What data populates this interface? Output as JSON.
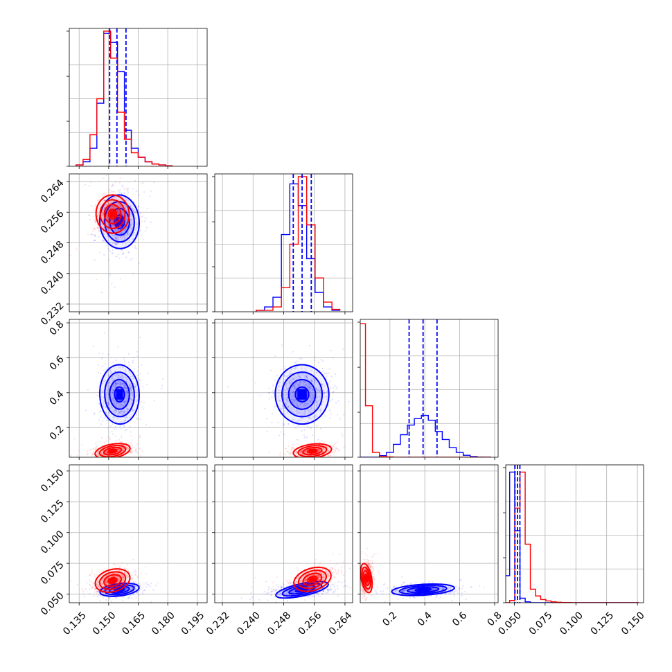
{
  "colors": {
    "blue": "#0000ff",
    "red": "#ff0000",
    "grid": "#b0b0b0",
    "axis": "#000000"
  },
  "chart_data": {
    "type": "corner",
    "grid": true,
    "n_params": 4,
    "series": [
      {
        "name": "",
        "color": "#0000ff"
      },
      {
        "name": "",
        "color": "#ff0000"
      }
    ],
    "params": [
      {
        "range": [
          0.13,
          0.2
        ],
        "ticks": [
          0.135,
          0.15,
          0.165,
          0.18,
          0.195
        ],
        "tick_labels": [
          "0.135",
          "0.150",
          "0.165",
          "0.180",
          "0.195"
        ]
      },
      {
        "range": [
          0.23,
          0.266
        ],
        "ticks": [
          0.232,
          0.24,
          0.248,
          0.256,
          0.264
        ],
        "tick_labels": [
          "0.232",
          "0.240",
          "0.248",
          "0.256",
          "0.264"
        ]
      },
      {
        "range": [
          0.03,
          0.82
        ],
        "ticks": [
          0.2,
          0.4,
          0.6,
          0.8
        ],
        "tick_labels": [
          "0.2",
          "0.4",
          "0.6",
          "0.8"
        ]
      },
      {
        "range": [
          0.043,
          0.155
        ],
        "ticks": [
          0.05,
          0.075,
          0.1,
          0.125,
          0.15
        ],
        "tick_labels": [
          "0.050",
          "0.075",
          "0.100",
          "0.125",
          "0.150"
        ]
      }
    ],
    "histograms": [
      {
        "param": 0,
        "bin_width": 0.0035,
        "bin_start": 0.1335,
        "ymax": 30,
        "blue": [
          0.3,
          1,
          4,
          14,
          29.5,
          27.5,
          21,
          8,
          4,
          2,
          1,
          0.5,
          0.3,
          0.1
        ],
        "red": [
          0.3,
          1.5,
          7,
          15,
          30,
          24,
          12,
          6,
          3,
          2,
          1,
          0.5,
          0.3,
          0.1
        ],
        "quantiles_blue": [
          0.1505,
          0.1542,
          0.1588
        ]
      },
      {
        "param": 1,
        "bin_width": 0.0022,
        "bin_start": 0.2408,
        "ymax": 28,
        "blue": [
          0.3,
          1,
          3,
          16,
          26.5,
          22,
          11,
          4,
          1,
          0.3
        ],
        "red": [
          0.3,
          0.3,
          1,
          5,
          14,
          28,
          18,
          7,
          2,
          0.5
        ],
        "quantiles_blue": [
          0.2505,
          0.2528,
          0.2552
        ]
      },
      {
        "param": 2,
        "bin_width": 0.04,
        "bin_start": 0.02,
        "ymax": 42,
        "blue": [
          0,
          0,
          0,
          0.5,
          1.5,
          4,
          7,
          10,
          12,
          13,
          11.5,
          8,
          5.5,
          3,
          1.5,
          0.6,
          0.2,
          0.05,
          0
        ],
        "red": [
          41.5,
          16,
          1.5,
          0.3,
          0.1,
          0,
          0,
          0,
          0,
          0,
          0,
          0,
          0,
          0,
          0,
          0,
          0,
          0,
          0
        ],
        "quantiles_blue": [
          0.31,
          0.39,
          0.47
        ]
      },
      {
        "param": 3,
        "bin_width": 0.0042,
        "bin_start": 0.042,
        "ymax": 30,
        "blue": [
          6,
          29,
          16,
          1,
          0.2,
          0,
          0,
          0,
          0,
          0,
          0,
          0,
          0,
          0,
          0,
          0,
          0,
          0,
          0,
          0,
          0,
          0,
          0,
          0,
          0,
          0
        ],
        "red": [
          0,
          0.5,
          21,
          29,
          13,
          3,
          1.5,
          0.7,
          0.4,
          0.2,
          0.1,
          0.05,
          0.05,
          0,
          0,
          0,
          0,
          0,
          0,
          0,
          0,
          0,
          0,
          0,
          0,
          0
        ],
        "quantiles_blue": [
          0.0505,
          0.0525,
          0.0545
        ]
      }
    ],
    "pairs": [
      {
        "row": 1,
        "col": 0,
        "blue": {
          "mean": [
            0.1555,
            0.2535
          ],
          "sd": [
            0.005,
            0.0035
          ],
          "rho": 0.1
        },
        "red": {
          "mean": [
            0.152,
            0.2555
          ],
          "sd": [
            0.0042,
            0.0025
          ],
          "rho": 0.1
        }
      },
      {
        "row": 2,
        "col": 0,
        "blue": {
          "mean": [
            0.1555,
            0.39
          ],
          "sd": [
            0.005,
            0.085
          ],
          "rho": 0.05
        },
        "red": {
          "mean": [
            0.152,
            0.065
          ],
          "sd": [
            0.0045,
            0.02
          ],
          "rho": 0.3
        }
      },
      {
        "row": 2,
        "col": 1,
        "blue": {
          "mean": [
            0.2528,
            0.39
          ],
          "sd": [
            0.0035,
            0.085
          ],
          "rho": 0.05
        },
        "red": {
          "mean": [
            0.2555,
            0.065
          ],
          "sd": [
            0.0025,
            0.02
          ],
          "rho": 0.2
        }
      },
      {
        "row": 3,
        "col": 0,
        "blue": {
          "mean": [
            0.1555,
            0.0535
          ],
          "sd": [
            0.005,
            0.0025
          ],
          "rho": 0.2
        },
        "red": {
          "mean": [
            0.152,
            0.061
          ],
          "sd": [
            0.0045,
            0.0045
          ],
          "rho": 0.45
        }
      },
      {
        "row": 3,
        "col": 1,
        "blue": {
          "mean": [
            0.2528,
            0.0535
          ],
          "sd": [
            0.0035,
            0.0025
          ],
          "rho": 0.35
        },
        "red": {
          "mean": [
            0.2555,
            0.062
          ],
          "sd": [
            0.0025,
            0.0045
          ],
          "rho": 0.5
        }
      },
      {
        "row": 3,
        "col": 2,
        "blue": {
          "mean": [
            0.39,
            0.0535
          ],
          "sd": [
            0.09,
            0.0022
          ],
          "rho": 0.1
        },
        "red": {
          "mean": [
            0.065,
            0.063
          ],
          "sd": [
            0.015,
            0.006
          ],
          "rho": 0.3
        }
      }
    ]
  }
}
